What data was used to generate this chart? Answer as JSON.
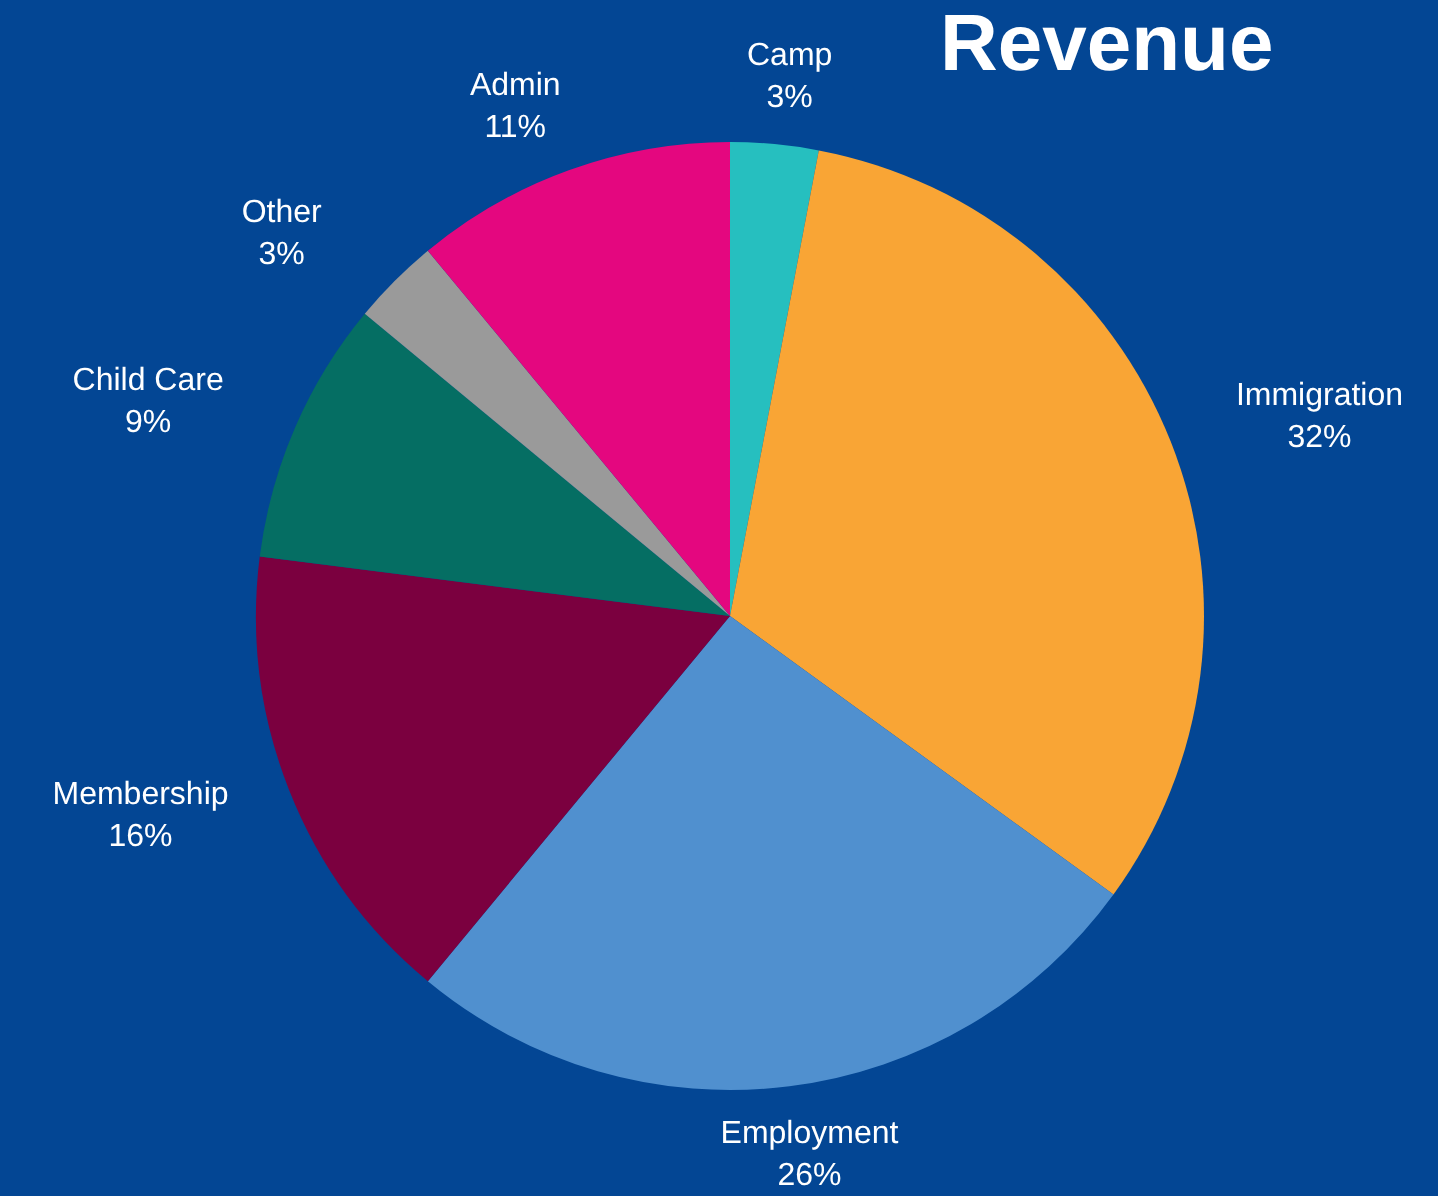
{
  "chart_data": {
    "type": "pie",
    "title": "Revenue",
    "categories": [
      "Camp",
      "Immigration",
      "Employment",
      "Membership",
      "Child Care",
      "Other",
      "Admin"
    ],
    "values": [
      3,
      32,
      26,
      16,
      9,
      3,
      11
    ],
    "value_labels": [
      "3%",
      "32%",
      "26%",
      "16%",
      "9%",
      "3%",
      "11%"
    ],
    "colors": [
      "#26bfbf",
      "#f9a535",
      "#5090cf",
      "#7b003f",
      "#056e63",
      "#9a9a9a",
      "#e4077f"
    ],
    "legend": false
  }
}
